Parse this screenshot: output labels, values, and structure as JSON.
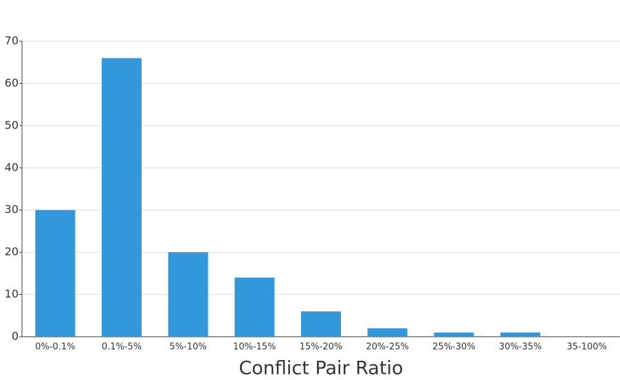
{
  "chart_data": {
    "type": "bar",
    "x_label": "Conflict Pair Ratio",
    "categories": [
      "0%-0.1%",
      "0.1%-5%",
      "5%-10%",
      "10%-15%",
      "15%-20%",
      "20%-25%",
      "25%-30%",
      "30%-35%",
      "35-100%"
    ],
    "values": [
      30,
      66,
      20,
      14,
      6,
      2,
      1,
      1,
      0
    ],
    "color": "#3398db",
    "ylim": [
      0,
      70
    ],
    "yticks": [
      0,
      10,
      20,
      30,
      40,
      50,
      60,
      70
    ],
    "grid": true
  }
}
